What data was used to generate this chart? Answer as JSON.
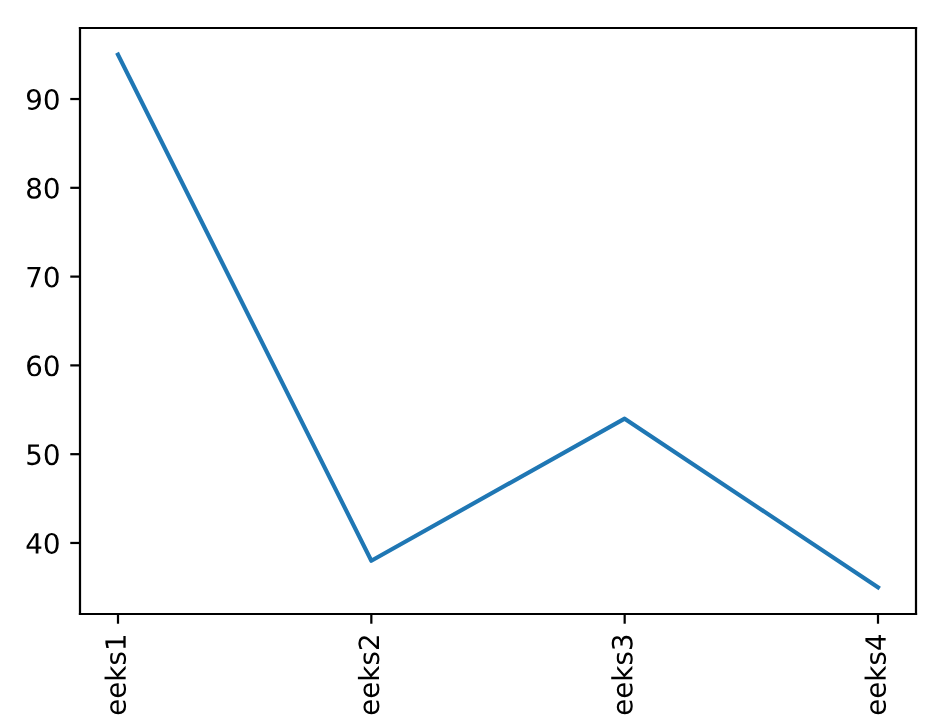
{
  "chart_data": {
    "type": "line",
    "categories": [
      "eeks1",
      "eeks2",
      "eeks3",
      "eeks4"
    ],
    "series": [
      {
        "color": "#1f77b4",
        "values": [
          95,
          38,
          54,
          35
        ]
      }
    ],
    "ylim": [
      32,
      98
    ],
    "yticks": [
      40,
      50,
      60,
      70,
      80,
      90
    ],
    "grid": false,
    "legend": false,
    "marker": "none",
    "line_style": "solid"
  }
}
